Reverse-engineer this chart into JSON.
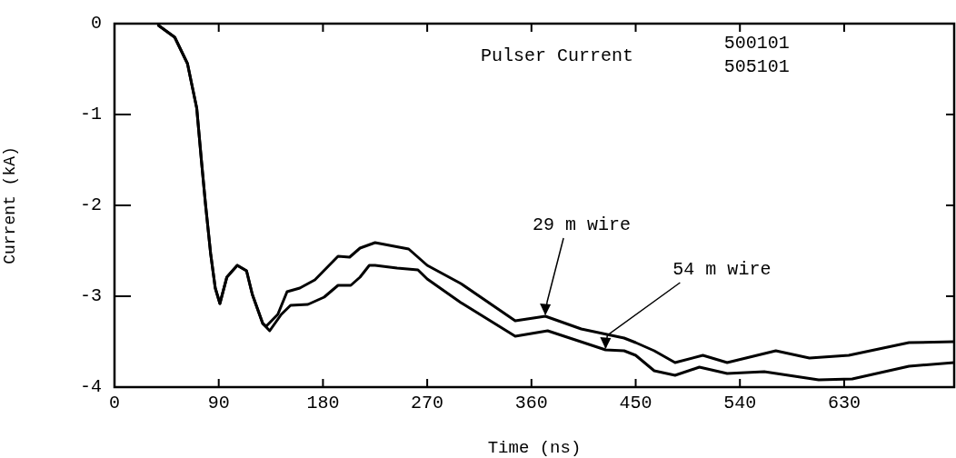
{
  "chart_data": {
    "type": "line",
    "xlabel": "Time (ns)",
    "ylabel": "Current (kA)",
    "xlim": [
      0,
      725
    ],
    "xticks": [
      0,
      90,
      180,
      270,
      360,
      450,
      540,
      630
    ],
    "ylim": [
      -4,
      0
    ],
    "yticks": [
      0,
      -1,
      -2,
      -3,
      -4
    ],
    "legend": false,
    "marker": "none",
    "line_style": "solid",
    "annotations": [
      "Pulser Current",
      "500101",
      "505101",
      {
        "text": "29 m wire",
        "x": 372,
        "y": -3.22
      },
      {
        "text": "54 m wire",
        "x": 424,
        "y": -3.59
      }
    ],
    "series": [
      {
        "color": "#000000",
        "x": [
          38,
          52,
          63,
          71,
          75,
          78.6,
          83,
          87,
          91,
          97,
          106,
          114,
          119,
          128,
          131,
          141,
          149,
          160,
          173,
          193,
          203,
          212,
          225,
          254,
          270,
          299,
          346,
          372,
          403,
          440,
          450,
          466,
          484,
          508,
          529,
          571,
          600,
          634,
          686,
          725
        ],
        "values": [
          -0.02,
          -0.15,
          -0.44,
          -0.93,
          -1.5,
          -1.99,
          -2.53,
          -2.91,
          -3.08,
          -2.79,
          -2.66,
          -2.72,
          -2.98,
          -3.3,
          -3.33,
          -3.2,
          -2.95,
          -2.91,
          -2.82,
          -2.56,
          -2.57,
          -2.47,
          -2.41,
          -2.48,
          -2.66,
          -2.86,
          -3.27,
          -3.22,
          -3.36,
          -3.46,
          -3.51,
          -3.6,
          -3.73,
          -3.65,
          -3.73,
          -3.6,
          -3.68,
          -3.65,
          -3.51,
          -3.5
        ]
      },
      {
        "color": "#000000",
        "x": [
          38,
          52,
          63,
          71,
          75,
          78.6,
          83,
          87,
          91,
          97,
          106,
          114,
          119,
          128,
          134,
          144,
          152,
          167,
          181,
          193,
          204,
          212,
          220,
          225,
          244,
          262,
          270,
          299,
          346,
          374,
          424,
          440,
          450,
          466,
          484,
          505,
          529,
          561,
          608,
          637,
          686,
          725
        ],
        "values": [
          -0.02,
          -0.15,
          -0.44,
          -0.93,
          -1.5,
          -1.99,
          -2.53,
          -2.91,
          -3.08,
          -2.79,
          -2.66,
          -2.72,
          -2.98,
          -3.3,
          -3.38,
          -3.2,
          -3.1,
          -3.09,
          -3.01,
          -2.88,
          -2.88,
          -2.79,
          -2.66,
          -2.66,
          -2.69,
          -2.71,
          -2.81,
          -3.07,
          -3.44,
          -3.38,
          -3.59,
          -3.6,
          -3.65,
          -3.82,
          -3.87,
          -3.78,
          -3.85,
          -3.83,
          -3.92,
          -3.91,
          -3.77,
          -3.73
        ]
      }
    ]
  }
}
